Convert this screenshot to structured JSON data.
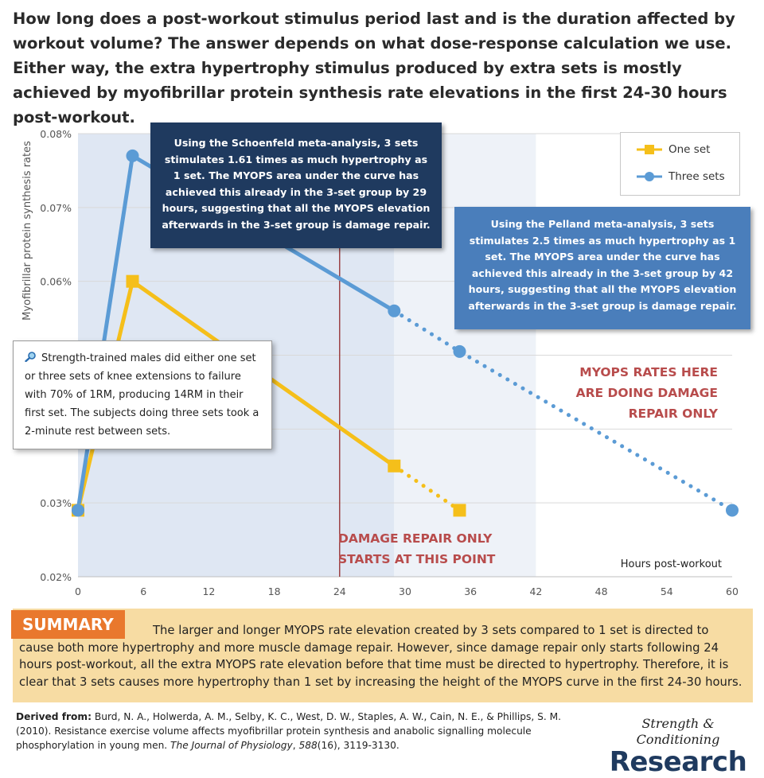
{
  "headline": "How long does a post-workout stimulus period last and is the duration affected by workout volume? The answer depends on what dose-response calculation we use. Either way, the extra hypertrophy stimulus produced by extra sets is mostly achieved by myofibrillar protein synthesis rate elevations in the first 24-30 hours post-workout.",
  "chart_data": {
    "type": "line",
    "xlabel": "Hours post-workout",
    "ylabel": "Myofibrillar protein synthesis rates",
    "xlim": [
      0,
      60
    ],
    "ylim": [
      0.02,
      0.08
    ],
    "x_ticks": [
      0,
      6,
      12,
      18,
      24,
      30,
      36,
      42,
      48,
      54,
      60
    ],
    "y_ticks": [
      0.02,
      0.03,
      0.04,
      0.05,
      0.06,
      0.07,
      0.08
    ],
    "y_tick_labels": [
      "0.02%",
      "0.03%",
      "",
      "",
      "0.06%",
      "0.07%",
      "0.08%"
    ],
    "grid": true,
    "legend_position": "top-right",
    "shaded_regions": [
      {
        "x_start": 0,
        "x_end": 29,
        "color": "#dfe7f3"
      },
      {
        "x_start": 29,
        "x_end": 42,
        "color": "#eef2f8"
      }
    ],
    "vertical_line": {
      "x": 24,
      "color": "#8b1a1a"
    },
    "series": [
      {
        "name": "One set",
        "color": "#f5bf1a",
        "marker": "square",
        "x": [
          0,
          5,
          29,
          35
        ],
        "y": [
          0.029,
          0.06,
          0.035,
          0.029
        ],
        "dotted_from_index": 2
      },
      {
        "name": "Three sets",
        "color": "#5b9bd5",
        "marker": "circle",
        "x": [
          0,
          5,
          29,
          35,
          60
        ],
        "y": [
          0.029,
          0.077,
          0.056,
          0.0505,
          0.029
        ],
        "dotted_from_index": 2
      }
    ]
  },
  "callouts": {
    "schoenfeld": "Using the Schoenfeld meta-analysis, 3 sets stimulates 1.61 times as much hypertrophy as 1 set. The MYOPS area under the curve has achieved this already in the 3-set group by 29 hours, suggesting that all the MYOPS elevation afterwards in the 3-set group is damage repair.",
    "pelland": "Using the Pelland meta-analysis, 3 sets stimulates 2.5 times as much hypertrophy as 1 set. The MYOPS area under the curve has achieved this already in the 3-set group by 42 hours, suggesting that all the MYOPS elevation afterwards in the 3-set group is damage repair.",
    "subjects": "Strength-trained males did either one set or three sets of knee extensions to failure with 70% of 1RM, producing 14RM in their first set. The subjects doing three sets took a 2-minute rest between sets.",
    "subjects_icon": "magnifier-icon"
  },
  "notes": {
    "myops": "MYOPS RATES HERE ARE DOING DAMAGE REPAIR ONLY",
    "damage": "DAMAGE REPAIR ONLY STARTS AT THIS POINT"
  },
  "summary": {
    "label": "SUMMARY",
    "text": "The larger and longer MYOPS rate elevation created by 3 sets compared to 1 set is directed to cause both more hypertrophy and more muscle damage repair. However, since damage repair only starts following 24 hours post-workout, all the extra MYOPS rate elevation before that time must be directed to hypertrophy. Therefore, it is clear that 3 sets causes more hypertrophy than 1 set by increasing the height of the MYOPS curve in the first 24-30 hours."
  },
  "citation": {
    "label": "Derived from:",
    "authors": " Burd, N. A., Holwerda, A. M., Selby, K. C., West, D. W., Staples, A. W., Cain, N. E., & Phillips, S. M. (2010). Resistance exercise volume affects myofibrillar protein synthesis and anabolic signalling molecule phosphorylation in young men. ",
    "journal": "The Journal of Physiology",
    "volume": ", 588",
    "issue": "(16), 3119-3130."
  },
  "logo": {
    "top": "Strength & Conditioning",
    "bottom": "Research"
  }
}
